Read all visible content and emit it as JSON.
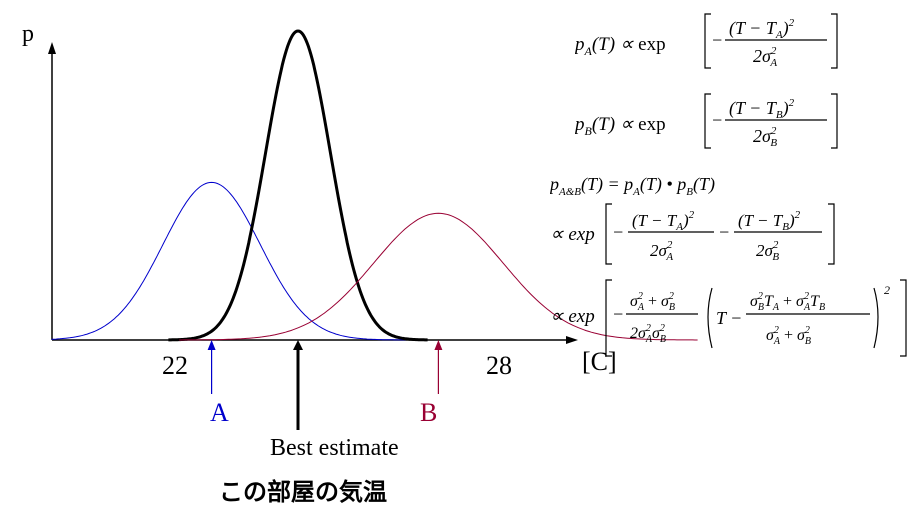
{
  "chart_data": {
    "type": "line",
    "ylabel": "p",
    "xlabel": "[C]",
    "x_ticks": [
      "22",
      "28"
    ],
    "series": [
      {
        "name": "A",
        "mean": 22.4,
        "sd": 0.9,
        "peak": 0.51,
        "color": "#0000cc"
      },
      {
        "name": "Best estimate",
        "mean": 24.0,
        "sd": 0.6,
        "peak": 1.0,
        "color": "#000000"
      },
      {
        "name": "B",
        "mean": 26.6,
        "sd": 1.2,
        "peak": 0.41,
        "color": "#990033"
      }
    ],
    "markers": [
      {
        "label": "A",
        "x": 22.4,
        "color": "#0000cc"
      },
      {
        "label": "Best estimate",
        "x": 24.0,
        "color": "#000000"
      },
      {
        "label": "B",
        "x": 26.6,
        "color": "#990033"
      }
    ]
  },
  "caption": "この部屋の気温",
  "equations": {
    "pa": "p_A(T) ∝ exp[ −(T − T_A)² / 2σ_A² ]",
    "pb": "p_B(T) ∝ exp[ −(T − T_B)² / 2σ_B² ]",
    "pab_def": "p_A&B(T) = p_A(T) • p_B(T)",
    "pab_sum": "∝ exp[ −(T − T_A)²/2σ_A² − (T − T_B)²/2σ_B² ]",
    "pab_final": "∝ exp[ −(σ_A² + σ_B²)/(2σ_A²σ_B²) ( T − (σ_B²T_A + σ_A²T_B)/(σ_A² + σ_B²) )² ]"
  }
}
